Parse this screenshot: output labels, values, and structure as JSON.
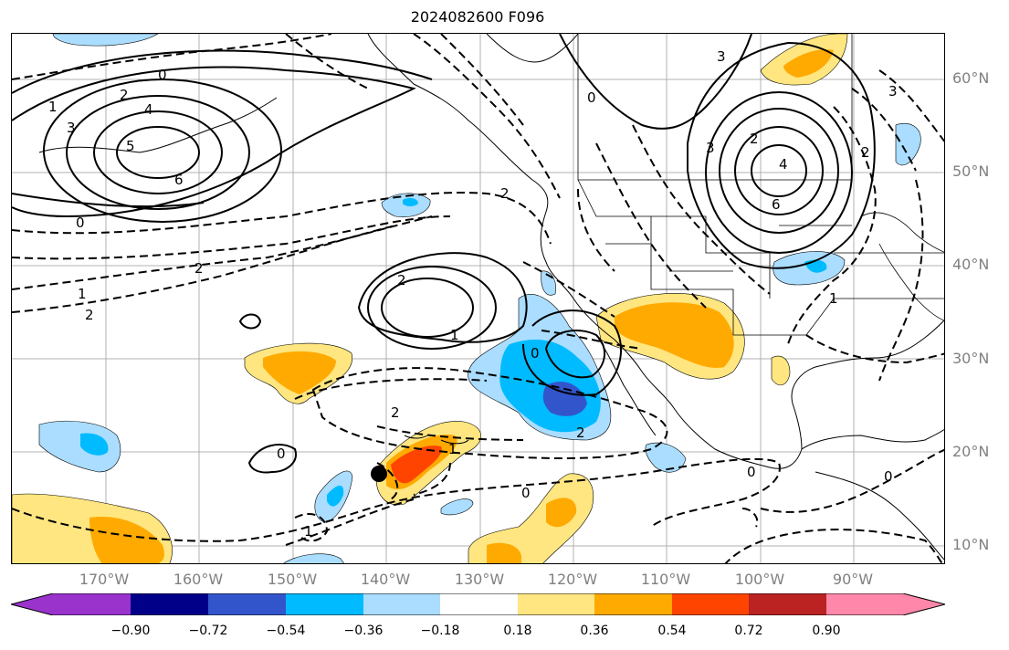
{
  "title": "2024082600 F096",
  "map": {
    "lat_labels": [
      "60°N",
      "50°N",
      "40°N",
      "30°N",
      "20°N",
      "10°N"
    ],
    "lon_labels": [
      "170°W",
      "160°W",
      "150°W",
      "140°W",
      "130°W",
      "120°W",
      "110°W",
      "100°W",
      "90°W"
    ],
    "contour_labels": [
      "0",
      "1",
      "2",
      "3",
      "4",
      "5",
      "6",
      "0",
      "2",
      "1",
      "2",
      "2",
      "1",
      "2",
      "1",
      "0",
      "2",
      "0",
      "3",
      "2",
      "6",
      "4",
      "3",
      "2",
      "1",
      "3",
      "0",
      "2",
      "1",
      "0",
      "0",
      "0"
    ],
    "storm_marker": "tropical-cyclone-position"
  },
  "colorbar": {
    "colors": [
      "#9933cc",
      "#000088",
      "#3355cc",
      "#00bbff",
      "#aaddff",
      "#ffffff",
      "#ffe680",
      "#ffaa00",
      "#ff4400",
      "#bb2222",
      "#ff88aa"
    ],
    "tick_labels": [
      "−0.90",
      "−0.72",
      "−0.54",
      "−0.36",
      "−0.18",
      "0.18",
      "0.36",
      "0.54",
      "0.72",
      "0.90"
    ]
  }
}
